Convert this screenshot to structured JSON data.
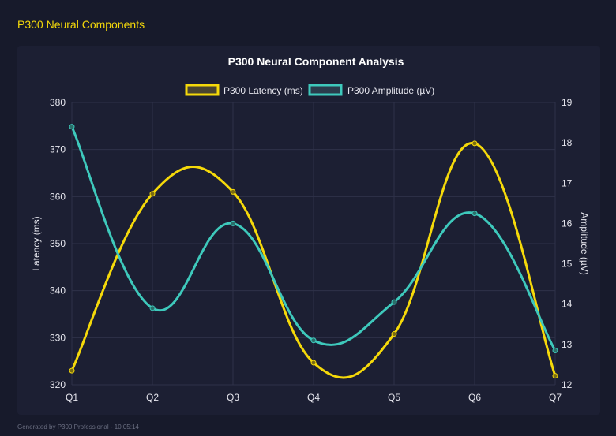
{
  "page_title": "P300 Neural Components",
  "footer": "Generated by P300 Professional - 10:05:14",
  "chart_data": {
    "type": "line",
    "title": "P300 Neural Component Analysis",
    "categories": [
      "Q1",
      "Q2",
      "Q3",
      "Q4",
      "Q5",
      "Q6",
      "Q7"
    ],
    "series": [
      {
        "name": "P300 Latency (ms)",
        "axis": "left",
        "color": "#f5d90a",
        "values": [
          323,
          360.6,
          361,
          324.7,
          330.8,
          371.3,
          321.9
        ]
      },
      {
        "name": "P300 Amplitude (µV)",
        "axis": "right",
        "color": "#3ec9bc",
        "values": [
          18.4,
          13.9,
          16.0,
          13.1,
          14.05,
          16.25,
          12.85
        ]
      }
    ],
    "ylabel": "Latency (ms)",
    "y2label": "Amplitude (µV)",
    "ylim": [
      320,
      380
    ],
    "yticks": [
      "380",
      "370",
      "360",
      "350",
      "340",
      "330",
      "320"
    ],
    "y2lim": [
      12,
      19
    ],
    "y2ticks": [
      "19",
      "18",
      "17",
      "16",
      "15",
      "14",
      "13",
      "12"
    ],
    "grid": true,
    "legend": "top"
  }
}
